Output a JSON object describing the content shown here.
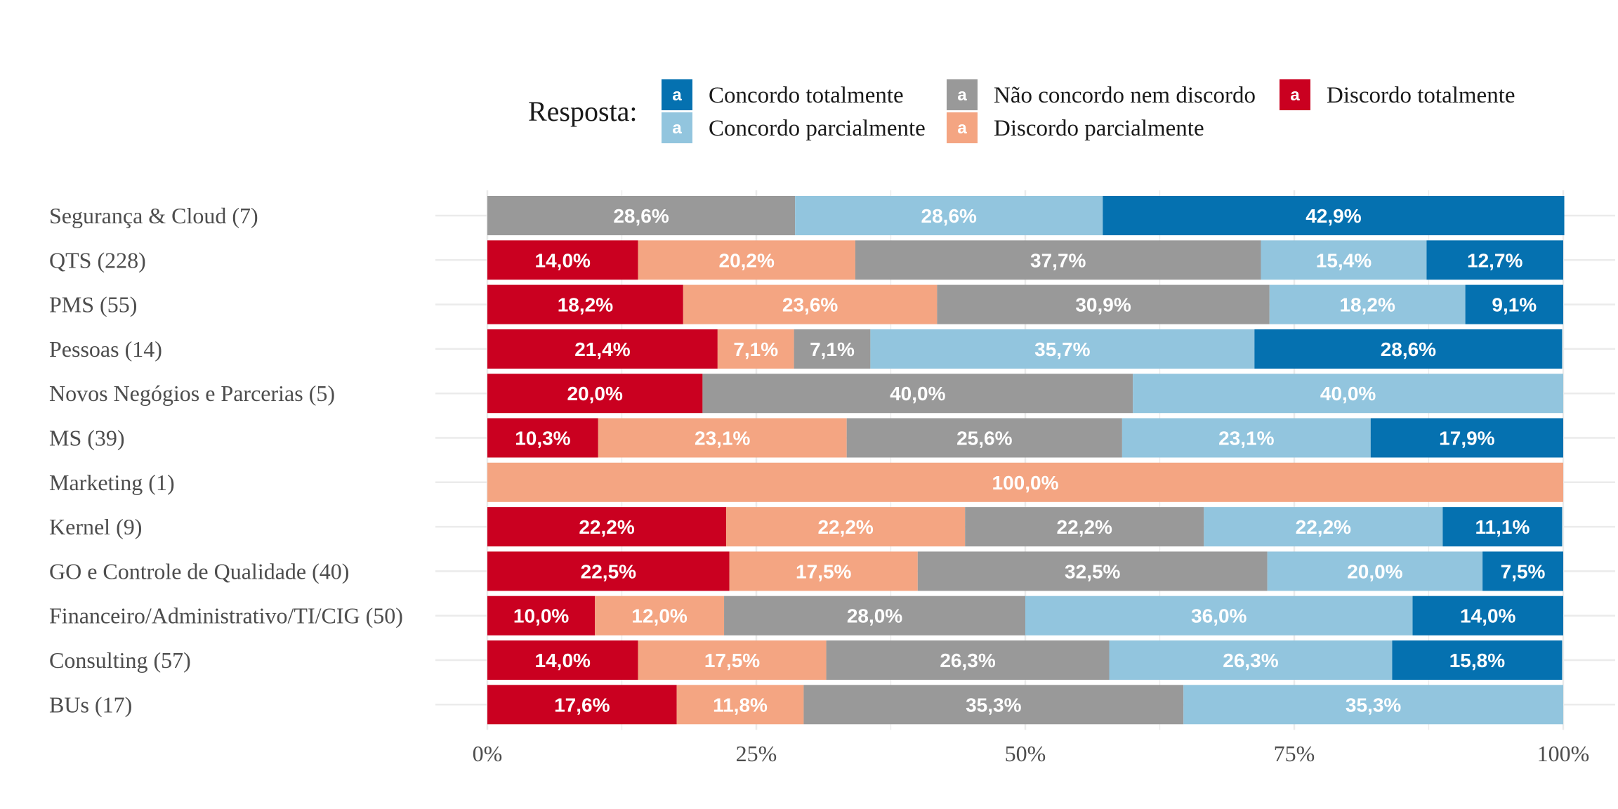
{
  "chart_data": {
    "type": "bar",
    "orientation": "horizontal",
    "stacked": true,
    "normalized": true,
    "legend": {
      "title": "Resposta:",
      "position": "top",
      "key_letter": "a",
      "entries": [
        {
          "name": "Concordo totalmente",
          "color": "#0571b0"
        },
        {
          "name": "Concordo parcialmente",
          "color": "#92c5de"
        },
        {
          "name": "Não concordo nem discordo",
          "color": "#999999"
        },
        {
          "name": "Discordo parcialmente",
          "color": "#f4a582"
        },
        {
          "name": "Discordo totalmente",
          "color": "#ca0020"
        }
      ]
    },
    "stack_order": [
      "Discordo totalmente",
      "Discordo parcialmente",
      "Não concordo nem discordo",
      "Concordo parcialmente",
      "Concordo totalmente"
    ],
    "categories": [
      "Segurança & Cloud (7)",
      "QTS (228)",
      "PMS (55)",
      "Pessoas (14)",
      "Novos Negógios e Parcerias (5)",
      "MS (39)",
      "Marketing (1)",
      "Kernel (9)",
      "GO e Controle de Qualidade (40)",
      "Financeiro/Administrativo/TI/CIG (50)",
      "Consulting (57)",
      "BUs (17)"
    ],
    "series": [
      {
        "name": "Discordo totalmente",
        "values": [
          0,
          14.0,
          18.2,
          21.4,
          20.0,
          10.3,
          0,
          22.2,
          22.5,
          10.0,
          14.0,
          17.6
        ]
      },
      {
        "name": "Discordo parcialmente",
        "values": [
          0,
          20.2,
          23.6,
          7.1,
          0,
          23.1,
          100.0,
          22.2,
          17.5,
          12.0,
          17.5,
          11.8
        ]
      },
      {
        "name": "Não concordo nem discordo",
        "values": [
          28.6,
          37.7,
          30.9,
          7.1,
          40.0,
          25.6,
          0,
          22.2,
          32.5,
          28.0,
          26.3,
          35.3
        ]
      },
      {
        "name": "Concordo parcialmente",
        "values": [
          28.6,
          15.4,
          18.2,
          35.7,
          40.0,
          23.1,
          0,
          22.2,
          20.0,
          36.0,
          26.3,
          35.3
        ]
      },
      {
        "name": "Concordo totalmente",
        "values": [
          42.9,
          12.7,
          9.1,
          28.6,
          0,
          17.9,
          0,
          11.1,
          7.5,
          14.0,
          15.8,
          0
        ]
      }
    ],
    "x_ticks": [
      "0%",
      "25%",
      "50%",
      "75%",
      "100%"
    ],
    "xlim": [
      0,
      100
    ],
    "xlabel": "",
    "ylabel": "",
    "title": "",
    "grid": true
  }
}
